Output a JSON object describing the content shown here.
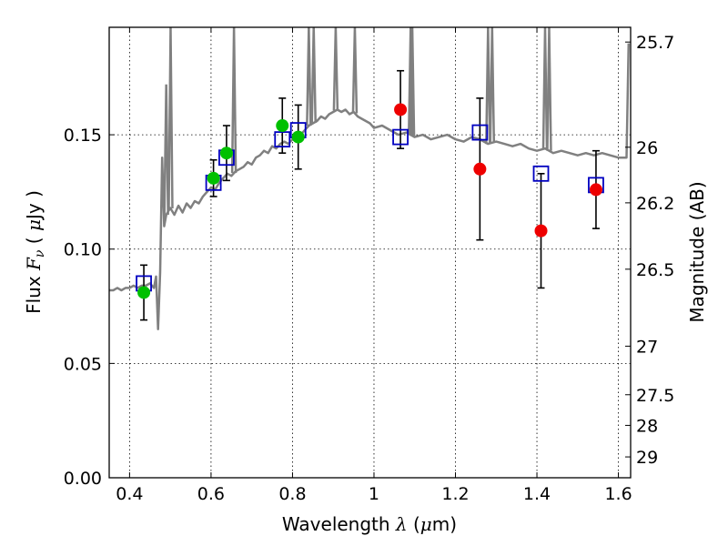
{
  "chart_data": {
    "type": "scatter",
    "xlabel": "Wavelength  λ (μm)",
    "ylabel": "Flux  Fν  ( μJy )",
    "y2label": "Magnitude (AB)",
    "xlim": [
      0.35,
      1.63
    ],
    "ylim": [
      0.0,
      0.197
    ],
    "grid": true,
    "x_ticks": [
      {
        "value": 0.4,
        "label": "0.4"
      },
      {
        "value": 0.6,
        "label": "0.6"
      },
      {
        "value": 0.8,
        "label": "0.8"
      },
      {
        "value": 1.0,
        "label": "1"
      },
      {
        "value": 1.2,
        "label": "1.2"
      },
      {
        "value": 1.4,
        "label": "1.4"
      },
      {
        "value": 1.6,
        "label": "1.6"
      }
    ],
    "y_ticks": [
      {
        "value": 0.0,
        "label": "0.00"
      },
      {
        "value": 0.05,
        "label": "0.05"
      },
      {
        "value": 0.1,
        "label": "0.10"
      },
      {
        "value": 0.15,
        "label": "0.15"
      }
    ],
    "y2_ticks": [
      {
        "mag": 25.7,
        "label": "25.7"
      },
      {
        "mag": 26.0,
        "label": "26"
      },
      {
        "mag": 26.2,
        "label": "26.2"
      },
      {
        "mag": 26.5,
        "label": "26.5"
      },
      {
        "mag": 27.0,
        "label": "27"
      },
      {
        "mag": 27.5,
        "label": "27.5"
      },
      {
        "mag": 28.0,
        "label": "28"
      },
      {
        "mag": 29.0,
        "label": "29"
      }
    ],
    "colors": {
      "model": "#808080",
      "green": "#00c000",
      "red": "#ee0000",
      "square": "#0000c0",
      "error": "#000000"
    },
    "model_spectrum": {
      "x": [
        0.35,
        0.36,
        0.37,
        0.38,
        0.39,
        0.4,
        0.41,
        0.42,
        0.43,
        0.44,
        0.45,
        0.46,
        0.465,
        0.47,
        0.475,
        0.48,
        0.485,
        0.49,
        0.5,
        0.51,
        0.52,
        0.53,
        0.54,
        0.55,
        0.56,
        0.57,
        0.58,
        0.59,
        0.6,
        0.61,
        0.62,
        0.63,
        0.64,
        0.65,
        0.66,
        0.67,
        0.68,
        0.69,
        0.7,
        0.71,
        0.72,
        0.73,
        0.74,
        0.75,
        0.76,
        0.77,
        0.78,
        0.79,
        0.8,
        0.81,
        0.82,
        0.83,
        0.84,
        0.85,
        0.86,
        0.87,
        0.88,
        0.89,
        0.9,
        0.91,
        0.92,
        0.93,
        0.94,
        0.95,
        0.96,
        0.97,
        0.98,
        0.99,
        1.0,
        1.02,
        1.04,
        1.06,
        1.08,
        1.1,
        1.12,
        1.14,
        1.16,
        1.18,
        1.2,
        1.22,
        1.24,
        1.26,
        1.28,
        1.3,
        1.32,
        1.34,
        1.36,
        1.38,
        1.4,
        1.42,
        1.44,
        1.46,
        1.48,
        1.5,
        1.52,
        1.54,
        1.56,
        1.58,
        1.6,
        1.62,
        1.625
      ],
      "y": [
        0.082,
        0.082,
        0.083,
        0.082,
        0.083,
        0.083,
        0.084,
        0.083,
        0.084,
        0.084,
        0.085,
        0.083,
        0.088,
        0.065,
        0.09,
        0.14,
        0.11,
        0.115,
        0.118,
        0.115,
        0.119,
        0.116,
        0.12,
        0.118,
        0.121,
        0.12,
        0.123,
        0.125,
        0.127,
        0.126,
        0.129,
        0.131,
        0.133,
        0.132,
        0.134,
        0.135,
        0.136,
        0.138,
        0.137,
        0.14,
        0.141,
        0.143,
        0.142,
        0.145,
        0.144,
        0.146,
        0.147,
        0.146,
        0.148,
        0.149,
        0.15,
        0.152,
        0.154,
        0.155,
        0.156,
        0.158,
        0.157,
        0.159,
        0.16,
        0.161,
        0.16,
        0.161,
        0.159,
        0.16,
        0.158,
        0.157,
        0.156,
        0.155,
        0.153,
        0.154,
        0.152,
        0.15,
        0.151,
        0.149,
        0.15,
        0.148,
        0.149,
        0.15,
        0.148,
        0.147,
        0.149,
        0.148,
        0.146,
        0.147,
        0.146,
        0.145,
        0.146,
        0.144,
        0.143,
        0.144,
        0.142,
        0.143,
        0.142,
        0.141,
        0.142,
        0.141,
        0.142,
        0.141,
        0.14,
        0.14,
        0.19
      ]
    },
    "emission_lines": [
      {
        "x": 0.49,
        "peak": 0.172
      },
      {
        "x": 0.5007,
        "peak": 0.197
      },
      {
        "x": 0.6563,
        "peak": 0.197
      },
      {
        "x": 0.84,
        "peak": 0.197
      },
      {
        "x": 0.852,
        "peak": 0.197
      },
      {
        "x": 0.906,
        "peak": 0.197
      },
      {
        "x": 0.953,
        "peak": 0.197
      },
      {
        "x": 1.09,
        "peak": 0.197
      },
      {
        "x": 1.094,
        "peak": 0.197
      },
      {
        "x": 1.28,
        "peak": 0.197
      },
      {
        "x": 1.29,
        "peak": 0.197
      },
      {
        "x": 1.42,
        "peak": 0.197
      },
      {
        "x": 1.43,
        "peak": 0.197
      }
    ],
    "green_points": [
      {
        "x": 0.435,
        "y": 0.081,
        "err": 0.012
      },
      {
        "x": 0.606,
        "y": 0.131,
        "err": 0.008
      },
      {
        "x": 0.638,
        "y": 0.142,
        "err": 0.012
      },
      {
        "x": 0.775,
        "y": 0.154,
        "err": 0.012
      },
      {
        "x": 0.814,
        "y": 0.149,
        "err": 0.014
      }
    ],
    "red_points": [
      {
        "x": 1.065,
        "y": 0.161,
        "err": 0.017
      },
      {
        "x": 1.26,
        "y": 0.135,
        "err": 0.031
      },
      {
        "x": 1.41,
        "y": 0.108,
        "err": 0.025
      },
      {
        "x": 1.545,
        "y": 0.126,
        "err": 0.017
      }
    ],
    "squares": [
      {
        "x": 0.435,
        "y": 0.085
      },
      {
        "x": 0.606,
        "y": 0.129
      },
      {
        "x": 0.638,
        "y": 0.14
      },
      {
        "x": 0.775,
        "y": 0.148
      },
      {
        "x": 0.814,
        "y": 0.152
      },
      {
        "x": 1.065,
        "y": 0.149
      },
      {
        "x": 1.26,
        "y": 0.151
      },
      {
        "x": 1.41,
        "y": 0.133
      },
      {
        "x": 1.545,
        "y": 0.128
      }
    ]
  }
}
